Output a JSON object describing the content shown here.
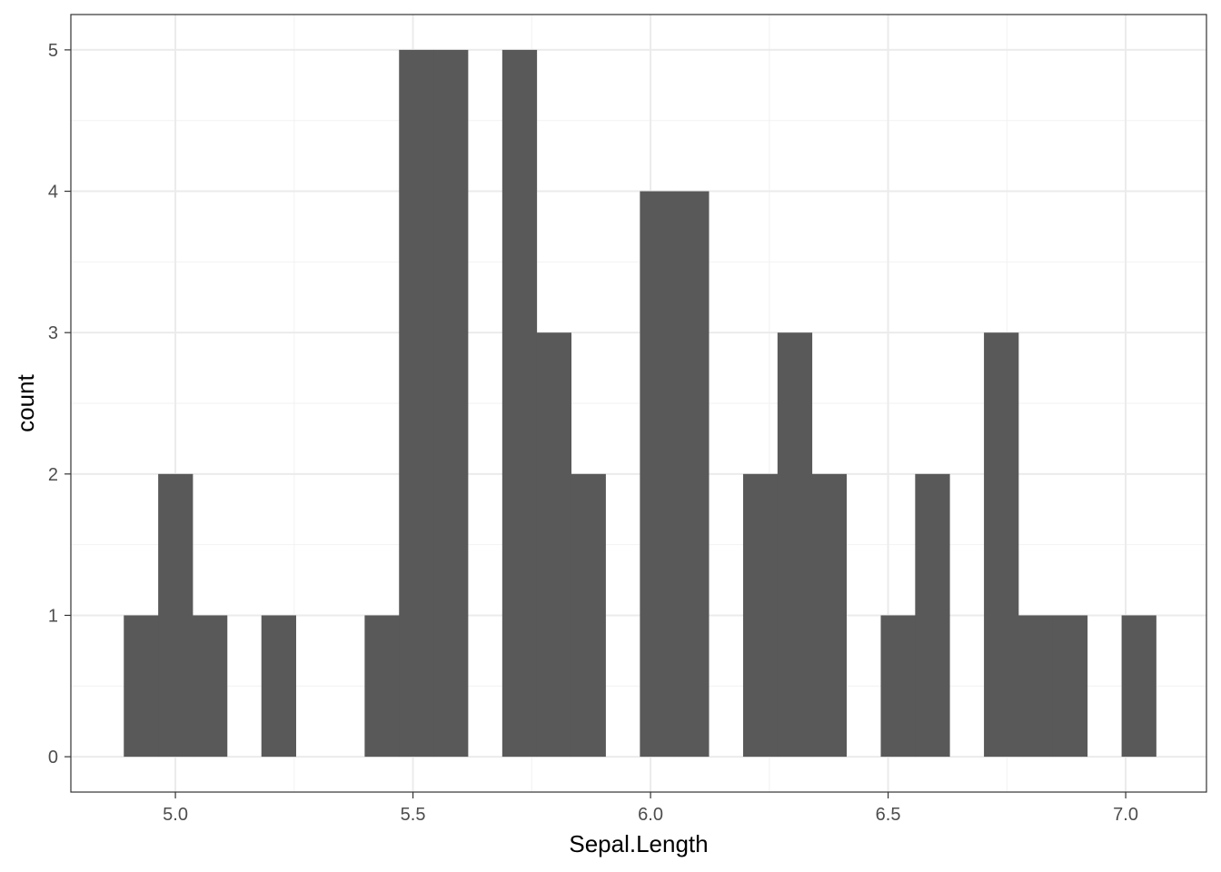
{
  "chart_data": {
    "type": "bar",
    "xlabel": "Sepal.Length",
    "ylabel": "count",
    "xlim": [
      4.78,
      7.17
    ],
    "ylim": [
      -0.25,
      5.25
    ],
    "bin_width": 0.0724,
    "x_ticks": [
      5.0,
      5.5,
      6.0,
      6.5,
      7.0
    ],
    "x_tick_labels": [
      "5.0",
      "5.5",
      "6.0",
      "6.5",
      "7.0"
    ],
    "y_ticks": [
      0,
      1,
      2,
      3,
      4,
      5
    ],
    "y_tick_labels": [
      "0",
      "1",
      "2",
      "3",
      "4",
      "5"
    ],
    "grid": true,
    "bar_color": "#595959",
    "bins": [
      {
        "x": 4.9276,
        "count": 1
      },
      {
        "x": 5.0,
        "count": 2
      },
      {
        "x": 5.0724,
        "count": 1
      },
      {
        "x": 5.1448,
        "count": 0
      },
      {
        "x": 5.2172,
        "count": 1
      },
      {
        "x": 5.2897,
        "count": 0
      },
      {
        "x": 5.3621,
        "count": 0
      },
      {
        "x": 5.4345,
        "count": 1
      },
      {
        "x": 5.5069,
        "count": 5
      },
      {
        "x": 5.5793,
        "count": 5
      },
      {
        "x": 5.6517,
        "count": 0
      },
      {
        "x": 5.7241,
        "count": 5
      },
      {
        "x": 5.7966,
        "count": 3
      },
      {
        "x": 5.869,
        "count": 2
      },
      {
        "x": 5.9414,
        "count": 0
      },
      {
        "x": 6.0138,
        "count": 4
      },
      {
        "x": 6.0862,
        "count": 4
      },
      {
        "x": 6.1586,
        "count": 0
      },
      {
        "x": 6.231,
        "count": 2
      },
      {
        "x": 6.3034,
        "count": 3
      },
      {
        "x": 6.3759,
        "count": 2
      },
      {
        "x": 6.4483,
        "count": 0
      },
      {
        "x": 6.5207,
        "count": 1
      },
      {
        "x": 6.5931,
        "count": 2
      },
      {
        "x": 6.6655,
        "count": 0
      },
      {
        "x": 6.7379,
        "count": 3
      },
      {
        "x": 6.8103,
        "count": 1
      },
      {
        "x": 6.8828,
        "count": 1
      },
      {
        "x": 6.9552,
        "count": 0
      },
      {
        "x": 7.0276,
        "count": 1
      }
    ]
  }
}
